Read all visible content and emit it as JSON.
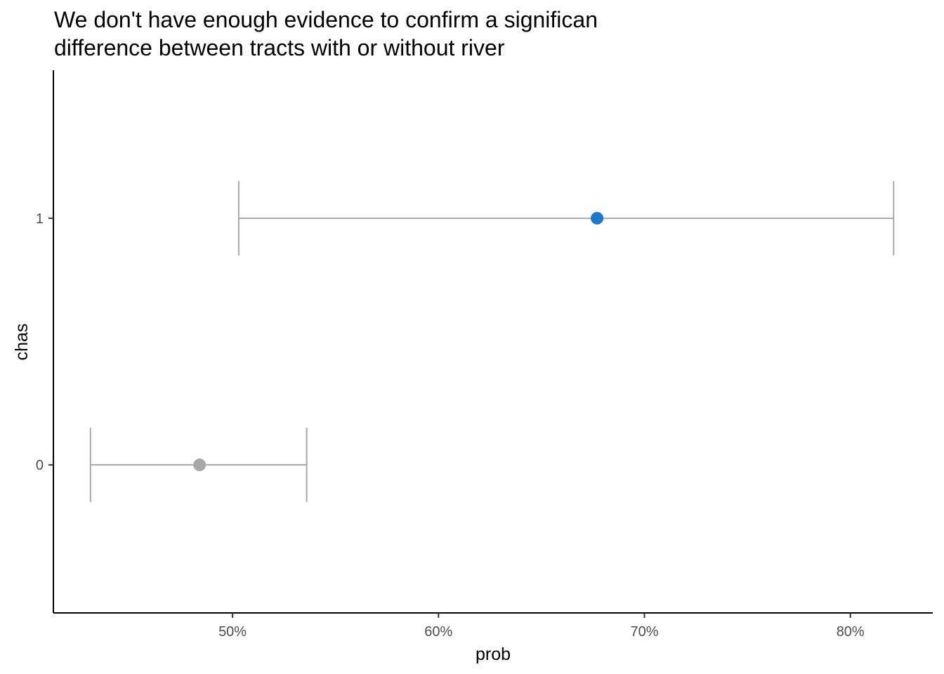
{
  "chart_data": {
    "type": "scatter",
    "subtype": "point-range (horizontal error bars)",
    "title_lines": [
      "We don't have enough evidence to confirm a significan",
      "difference between tracts with or without river"
    ],
    "xlabel": "prob",
    "ylabel": "chas",
    "x_axis_format": "percent",
    "xlim": [
      0.413,
      0.84
    ],
    "x_ticks": [
      {
        "value": 0.5,
        "label": "50%"
      },
      {
        "value": 0.6,
        "label": "60%"
      },
      {
        "value": 0.7,
        "label": "70%"
      },
      {
        "value": 0.8,
        "label": "80%"
      }
    ],
    "categories": [
      "0",
      "1"
    ],
    "points": [
      {
        "category": "0",
        "estimate": 0.484,
        "lower": 0.431,
        "upper": 0.536,
        "color": "#a8a8a8"
      },
      {
        "category": "1",
        "estimate": 0.677,
        "lower": 0.503,
        "upper": 0.821,
        "color": "#1f77cc"
      }
    ],
    "errorbar_color": "#a8a8a8",
    "grid": false,
    "legend": "none"
  }
}
